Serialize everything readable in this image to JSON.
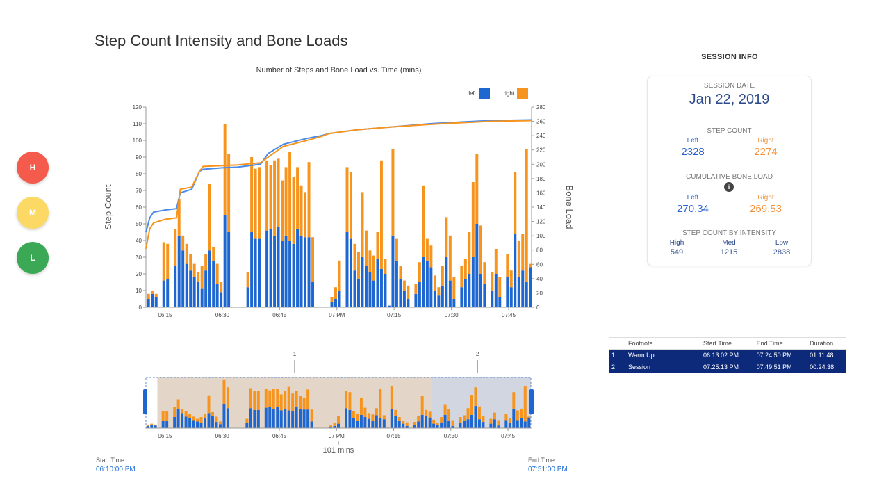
{
  "page": {
    "title": "Step Count Intensity and Bone Loads"
  },
  "intensity_filters": [
    {
      "label": "H",
      "color": "#f45b4c"
    },
    {
      "label": "M",
      "color": "#fbd964"
    },
    {
      "label": "L",
      "color": "#3aa855"
    }
  ],
  "chart_data": {
    "type": "bar",
    "title": "Number of Steps and Bone Load vs. Time (mins)",
    "xlabel": "",
    "ylabel": "Step Count",
    "y2label": "Bone Load",
    "ylim": [
      0,
      120
    ],
    "y2lim": [
      0,
      280
    ],
    "yticks": [
      0,
      10,
      20,
      30,
      40,
      50,
      60,
      70,
      80,
      90,
      100,
      110,
      120
    ],
    "y2ticks": [
      0,
      20,
      40,
      60,
      80,
      100,
      120,
      140,
      160,
      180,
      200,
      220,
      240,
      260,
      280
    ],
    "x_range_minutes": [
      0,
      101
    ],
    "x_ticks": [
      {
        "minute": 5,
        "label": "06:15"
      },
      {
        "minute": 20,
        "label": "06:30"
      },
      {
        "minute": 35,
        "label": "06:45"
      },
      {
        "minute": 50,
        "label": "07 PM"
      },
      {
        "minute": 65,
        "label": "07:15"
      },
      {
        "minute": 80,
        "label": "07:30"
      },
      {
        "minute": 95,
        "label": "07:45"
      }
    ],
    "legend": [
      {
        "name": "left",
        "color": "#1e66d0"
      },
      {
        "name": "right",
        "color": "#f7941d"
      }
    ],
    "categories_minutes": [
      0,
      1,
      2,
      3,
      4,
      5,
      6,
      7,
      8,
      9,
      10,
      11,
      12,
      13,
      14,
      15,
      16,
      17,
      18,
      19,
      20,
      21,
      22,
      23,
      24,
      25,
      26,
      27,
      28,
      29,
      30,
      31,
      32,
      33,
      34,
      35,
      36,
      37,
      38,
      39,
      40,
      41,
      42,
      43,
      44,
      45,
      46,
      47,
      48,
      49,
      50,
      51,
      52,
      53,
      54,
      55,
      56,
      57,
      58,
      59,
      60,
      61,
      62,
      63,
      64,
      65,
      66,
      67,
      68,
      69,
      70,
      71,
      72,
      73,
      74,
      75,
      76,
      77,
      78,
      79,
      80,
      81,
      82,
      83,
      84,
      85,
      86,
      87,
      88,
      89,
      90,
      91,
      92,
      93,
      94,
      95,
      96,
      97,
      98,
      99,
      100
    ],
    "series": [
      {
        "name": "left",
        "color": "#1e66d0",
        "values": [
          5,
          8,
          6,
          0,
          16,
          17,
          0,
          25,
          43,
          34,
          26,
          22,
          18,
          15,
          11,
          22,
          34,
          28,
          14,
          9,
          55,
          45,
          0,
          0,
          0,
          0,
          12,
          45,
          41,
          41,
          0,
          46,
          47,
          43,
          48,
          40,
          43,
          40,
          38,
          47,
          43,
          42,
          42,
          15,
          0,
          0,
          0,
          0,
          3,
          5,
          10,
          0,
          45,
          41,
          22,
          17,
          30,
          25,
          21,
          16,
          29,
          23,
          20,
          1,
          43,
          28,
          17,
          10,
          5,
          0,
          8,
          15,
          30,
          28,
          24,
          10,
          7,
          13,
          30,
          16,
          5,
          0,
          12,
          17,
          20,
          30,
          50,
          20,
          14,
          0,
          10,
          20,
          6,
          0,
          18,
          12,
          44,
          18,
          22,
          15,
          24
        ]
      },
      {
        "name": "right",
        "color": "#f7941d",
        "values": [
          3,
          2,
          2,
          0,
          23,
          21,
          0,
          22,
          22,
          9,
          12,
          10,
          8,
          6,
          14,
          10,
          40,
          8,
          12,
          6,
          55,
          47,
          0,
          0,
          0,
          0,
          9,
          45,
          42,
          43,
          0,
          42,
          38,
          45,
          41,
          36,
          41,
          53,
          40,
          37,
          30,
          27,
          45,
          27,
          0,
          0,
          0,
          0,
          3,
          7,
          18,
          0,
          39,
          40,
          16,
          16,
          39,
          21,
          13,
          15,
          16,
          65,
          9,
          0,
          52,
          13,
          8,
          6,
          8,
          0,
          6,
          12,
          43,
          13,
          13,
          9,
          5,
          12,
          24,
          27,
          13,
          0,
          13,
          12,
          25,
          45,
          42,
          29,
          13,
          0,
          11,
          15,
          12,
          0,
          14,
          10,
          37,
          22,
          22,
          80,
          2
        ]
      }
    ],
    "cumulative_bone_load": [
      {
        "name": "left",
        "color": "#4a8ae8",
        "points": [
          [
            0,
            105
          ],
          [
            1,
            125
          ],
          [
            2,
            133
          ],
          [
            5,
            136
          ],
          [
            8,
            138
          ],
          [
            9,
            160
          ],
          [
            12,
            165
          ],
          [
            14,
            190
          ],
          [
            15,
            193
          ],
          [
            20,
            195
          ],
          [
            24,
            196
          ],
          [
            30,
            200
          ],
          [
            32,
            215
          ],
          [
            36,
            228
          ],
          [
            42,
            236
          ],
          [
            46,
            240
          ],
          [
            48,
            243
          ],
          [
            55,
            248
          ],
          [
            64,
            252
          ],
          [
            75,
            257
          ],
          [
            90,
            261
          ],
          [
            101,
            262
          ]
        ]
      },
      {
        "name": "right",
        "color": "#f7941d",
        "points": [
          [
            0,
            82
          ],
          [
            1,
            110
          ],
          [
            2,
            118
          ],
          [
            5,
            123
          ],
          [
            8,
            125
          ],
          [
            9,
            165
          ],
          [
            12,
            168
          ],
          [
            14,
            190
          ],
          [
            15,
            197
          ],
          [
            20,
            198
          ],
          [
            24,
            199
          ],
          [
            30,
            202
          ],
          [
            32,
            210
          ],
          [
            36,
            225
          ],
          [
            42,
            233
          ],
          [
            46,
            239
          ],
          [
            48,
            243
          ],
          [
            55,
            248
          ],
          [
            64,
            252
          ],
          [
            75,
            256
          ],
          [
            90,
            260
          ],
          [
            101,
            261
          ]
        ]
      }
    ]
  },
  "navigator": {
    "selection_label": "101 mins",
    "markers": [
      "1",
      "2"
    ],
    "marker_minutes": [
      39,
      87
    ],
    "shaded_ranges": [
      {
        "start_minute": 3,
        "end_minute": 75,
        "color": "#b08a62"
      },
      {
        "start_minute": 75,
        "end_minute": 101,
        "color": "#7a8aa6"
      }
    ],
    "start_time_label": "Start Time",
    "start_time_value": "06:10:00 PM",
    "end_time_label": "End Time",
    "end_time_value": "07:51:00 PM"
  },
  "session_info": {
    "heading": "SESSION INFO",
    "date_label": "SESSION DATE",
    "date_value": "Jan 22, 2019",
    "step_count_label": "STEP COUNT",
    "left_label": "Left",
    "right_label": "Right",
    "step_left": "2328",
    "step_right": "2274",
    "bone_load_label": "CUMULATIVE BONE LOAD",
    "info_icon": "i",
    "bone_left": "270.34",
    "bone_right": "269.53",
    "intensity_label": "STEP COUNT BY INTENSITY",
    "intensities": [
      {
        "label": "High",
        "value": "549"
      },
      {
        "label": "Med",
        "value": "1215"
      },
      {
        "label": "Low",
        "value": "2838"
      }
    ]
  },
  "footnotes": {
    "headers": [
      "",
      "Footnote",
      "Start Time",
      "End Time",
      "Duration"
    ],
    "rows": [
      {
        "num": "1",
        "footnote": "Warm Up",
        "start": "06:13:02 PM",
        "end": "07:24:50 PM",
        "duration": "01:11:48"
      },
      {
        "num": "2",
        "footnote": "Session",
        "start": "07:25:13 PM",
        "end": "07:49:51 PM",
        "duration": "00:24:38"
      }
    ]
  }
}
